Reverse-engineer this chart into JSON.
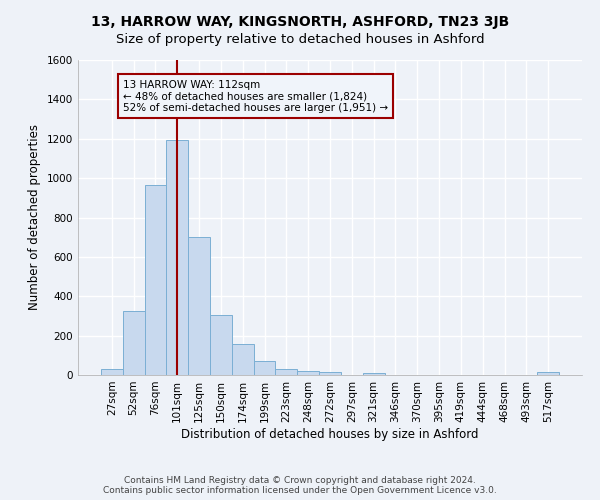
{
  "title": "13, HARROW WAY, KINGSNORTH, ASHFORD, TN23 3JB",
  "subtitle": "Size of property relative to detached houses in Ashford",
  "xlabel": "Distribution of detached houses by size in Ashford",
  "ylabel": "Number of detached properties",
  "footer": "Contains HM Land Registry data © Crown copyright and database right 2024.\nContains public sector information licensed under the Open Government Licence v3.0.",
  "bar_labels": [
    "27sqm",
    "52sqm",
    "76sqm",
    "101sqm",
    "125sqm",
    "150sqm",
    "174sqm",
    "199sqm",
    "223sqm",
    "248sqm",
    "272sqm",
    "297sqm",
    "321sqm",
    "346sqm",
    "370sqm",
    "395sqm",
    "419sqm",
    "444sqm",
    "468sqm",
    "493sqm",
    "517sqm"
  ],
  "bar_heights": [
    30,
    325,
    965,
    1195,
    700,
    305,
    155,
    70,
    28,
    18,
    13,
    0,
    10,
    0,
    0,
    0,
    0,
    0,
    0,
    0,
    13
  ],
  "bar_color": "#c8d9ee",
  "bar_edge_color": "#7bafd4",
  "vline_x": 3.0,
  "vline_color": "#9b0000",
  "annotation_text": "13 HARROW WAY: 112sqm\n← 48% of detached houses are smaller (1,824)\n52% of semi-detached houses are larger (1,951) →",
  "annotation_box_color": "#9b0000",
  "annotation_bg": "#f0f4fa",
  "ylim": [
    0,
    1600
  ],
  "yticks": [
    0,
    200,
    400,
    600,
    800,
    1000,
    1200,
    1400,
    1600
  ],
  "bg_color": "#eef2f8",
  "grid_color": "#d8e0ec",
  "title_fontsize": 10,
  "label_fontsize": 8.5,
  "tick_fontsize": 7.5,
  "footer_fontsize": 6.5
}
